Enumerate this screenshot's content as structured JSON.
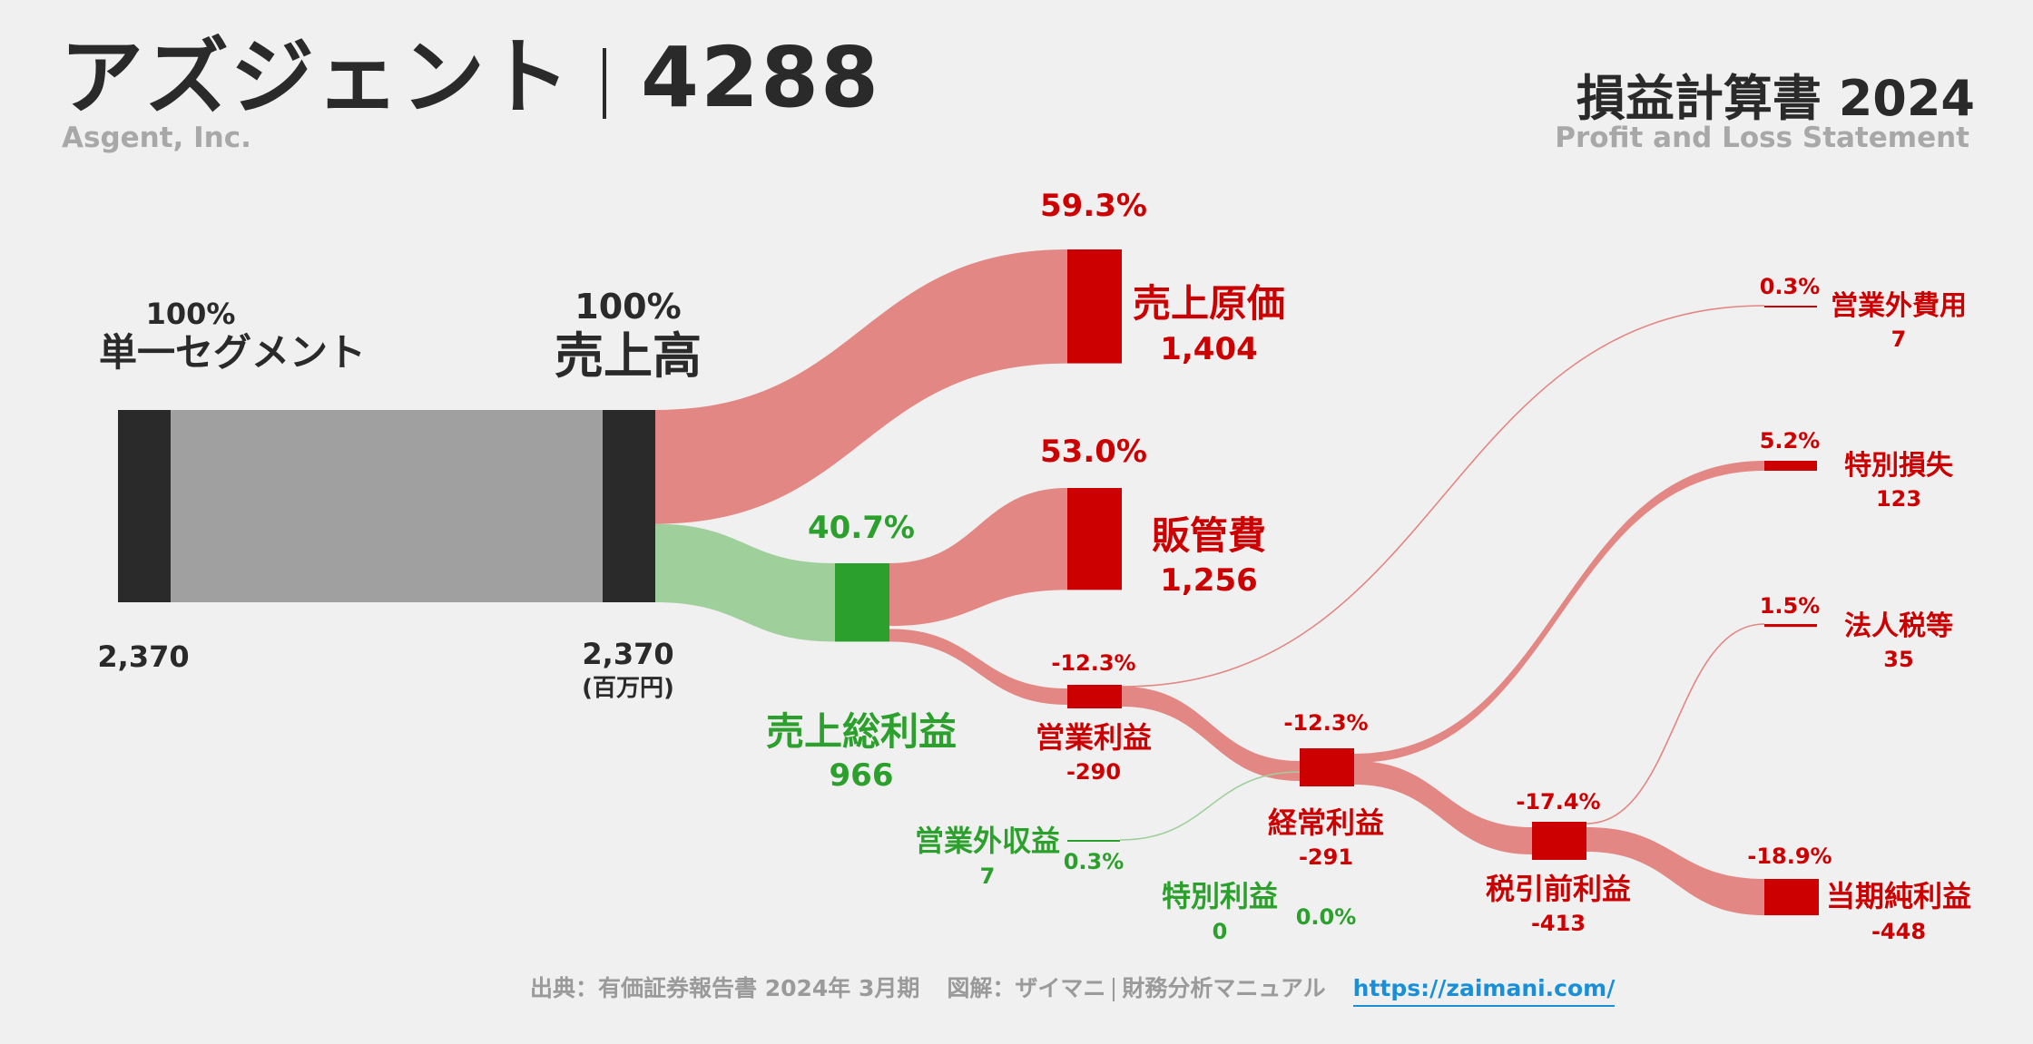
{
  "header": {
    "company_name": "アズジェント",
    "ticker": "4288",
    "company_en": "Asgent, Inc.",
    "statement_title": "損益計算書 2024",
    "statement_en": "Profit and Loss Statement"
  },
  "footer": {
    "source": "出典：有価証券報告書 2024年 3月期",
    "credit_a": "図解：ザイマニ",
    "credit_b": "財務分析マニュアル",
    "link": "https://zaimani.com/"
  },
  "colors": {
    "revenue": "#2a2a2a",
    "segment_flow": "#a0a0a0",
    "cost": "#cc0000",
    "cost_flow": "#e28784",
    "profit": "#2ca02c",
    "profit_flow": "#9fcf9b",
    "title_text": "#2a2a2a"
  },
  "chart_data": {
    "type": "sankey",
    "unit": "(百万円)",
    "nodes": [
      {
        "id": "segment",
        "label": "単一セグメント",
        "value": 2370,
        "value_label": "2,370",
        "pct_label": "100%",
        "kind": "revenue"
      },
      {
        "id": "revenue",
        "label": "売上高",
        "value": 2370,
        "value_label": "2,370",
        "pct_label": "100%",
        "kind": "revenue"
      },
      {
        "id": "cogs",
        "label": "売上原価",
        "value": 1404,
        "value_label": "1,404",
        "pct_label": "59.3%",
        "kind": "cost"
      },
      {
        "id": "gross",
        "label": "売上総利益",
        "value": 966,
        "value_label": "966",
        "pct_label": "40.7%",
        "kind": "profit"
      },
      {
        "id": "sga",
        "label": "販管費",
        "value": 1256,
        "value_label": "1,256",
        "pct_label": "53.0%",
        "kind": "cost"
      },
      {
        "id": "op",
        "label": "営業利益",
        "value": -290,
        "value_label": "-290",
        "pct_label": "-12.3%",
        "kind": "loss"
      },
      {
        "id": "nonop_inc",
        "label": "営業外収益",
        "value": 7,
        "value_label": "7",
        "pct_label": "0.3%",
        "kind": "profit"
      },
      {
        "id": "nonop_exp",
        "label": "営業外費用",
        "value": 7,
        "value_label": "7",
        "pct_label": "0.3%",
        "kind": "cost"
      },
      {
        "id": "ordinary",
        "label": "経常利益",
        "value": -291,
        "value_label": "-291",
        "pct_label": "-12.3%",
        "kind": "loss"
      },
      {
        "id": "ext_gain",
        "label": "特別利益",
        "value": 0,
        "value_label": "0",
        "pct_label": "0.0%",
        "kind": "profit"
      },
      {
        "id": "ext_loss",
        "label": "特別損失",
        "value": 123,
        "value_label": "123",
        "pct_label": "5.2%",
        "kind": "cost"
      },
      {
        "id": "pretax",
        "label": "税引前利益",
        "value": -413,
        "value_label": "-413",
        "pct_label": "-17.4%",
        "kind": "loss"
      },
      {
        "id": "tax",
        "label": "法人税等",
        "value": 35,
        "value_label": "35",
        "pct_label": "1.5%",
        "kind": "cost"
      },
      {
        "id": "net",
        "label": "当期純利益",
        "value": -448,
        "value_label": "-448",
        "pct_label": "-18.9%",
        "kind": "loss"
      }
    ],
    "flows": [
      {
        "from": "segment",
        "to": "revenue",
        "value": 2370
      },
      {
        "from": "revenue",
        "to": "cogs",
        "value": 1404
      },
      {
        "from": "revenue",
        "to": "gross",
        "value": 966
      },
      {
        "from": "gross",
        "to": "sga",
        "value": 1256
      },
      {
        "from": "gross",
        "to": "op",
        "value": -290
      },
      {
        "from": "op",
        "to": "ordinary",
        "value": -291
      },
      {
        "from": "op",
        "to": "nonop_exp",
        "value": 7
      },
      {
        "from": "nonop_inc",
        "to": "ordinary",
        "value": 7
      },
      {
        "from": "ordinary",
        "to": "pretax",
        "value": -413
      },
      {
        "from": "ordinary",
        "to": "ext_loss",
        "value": 123
      },
      {
        "from": "pretax",
        "to": "net",
        "value": -448
      },
      {
        "from": "pretax",
        "to": "tax",
        "value": 35
      }
    ]
  }
}
